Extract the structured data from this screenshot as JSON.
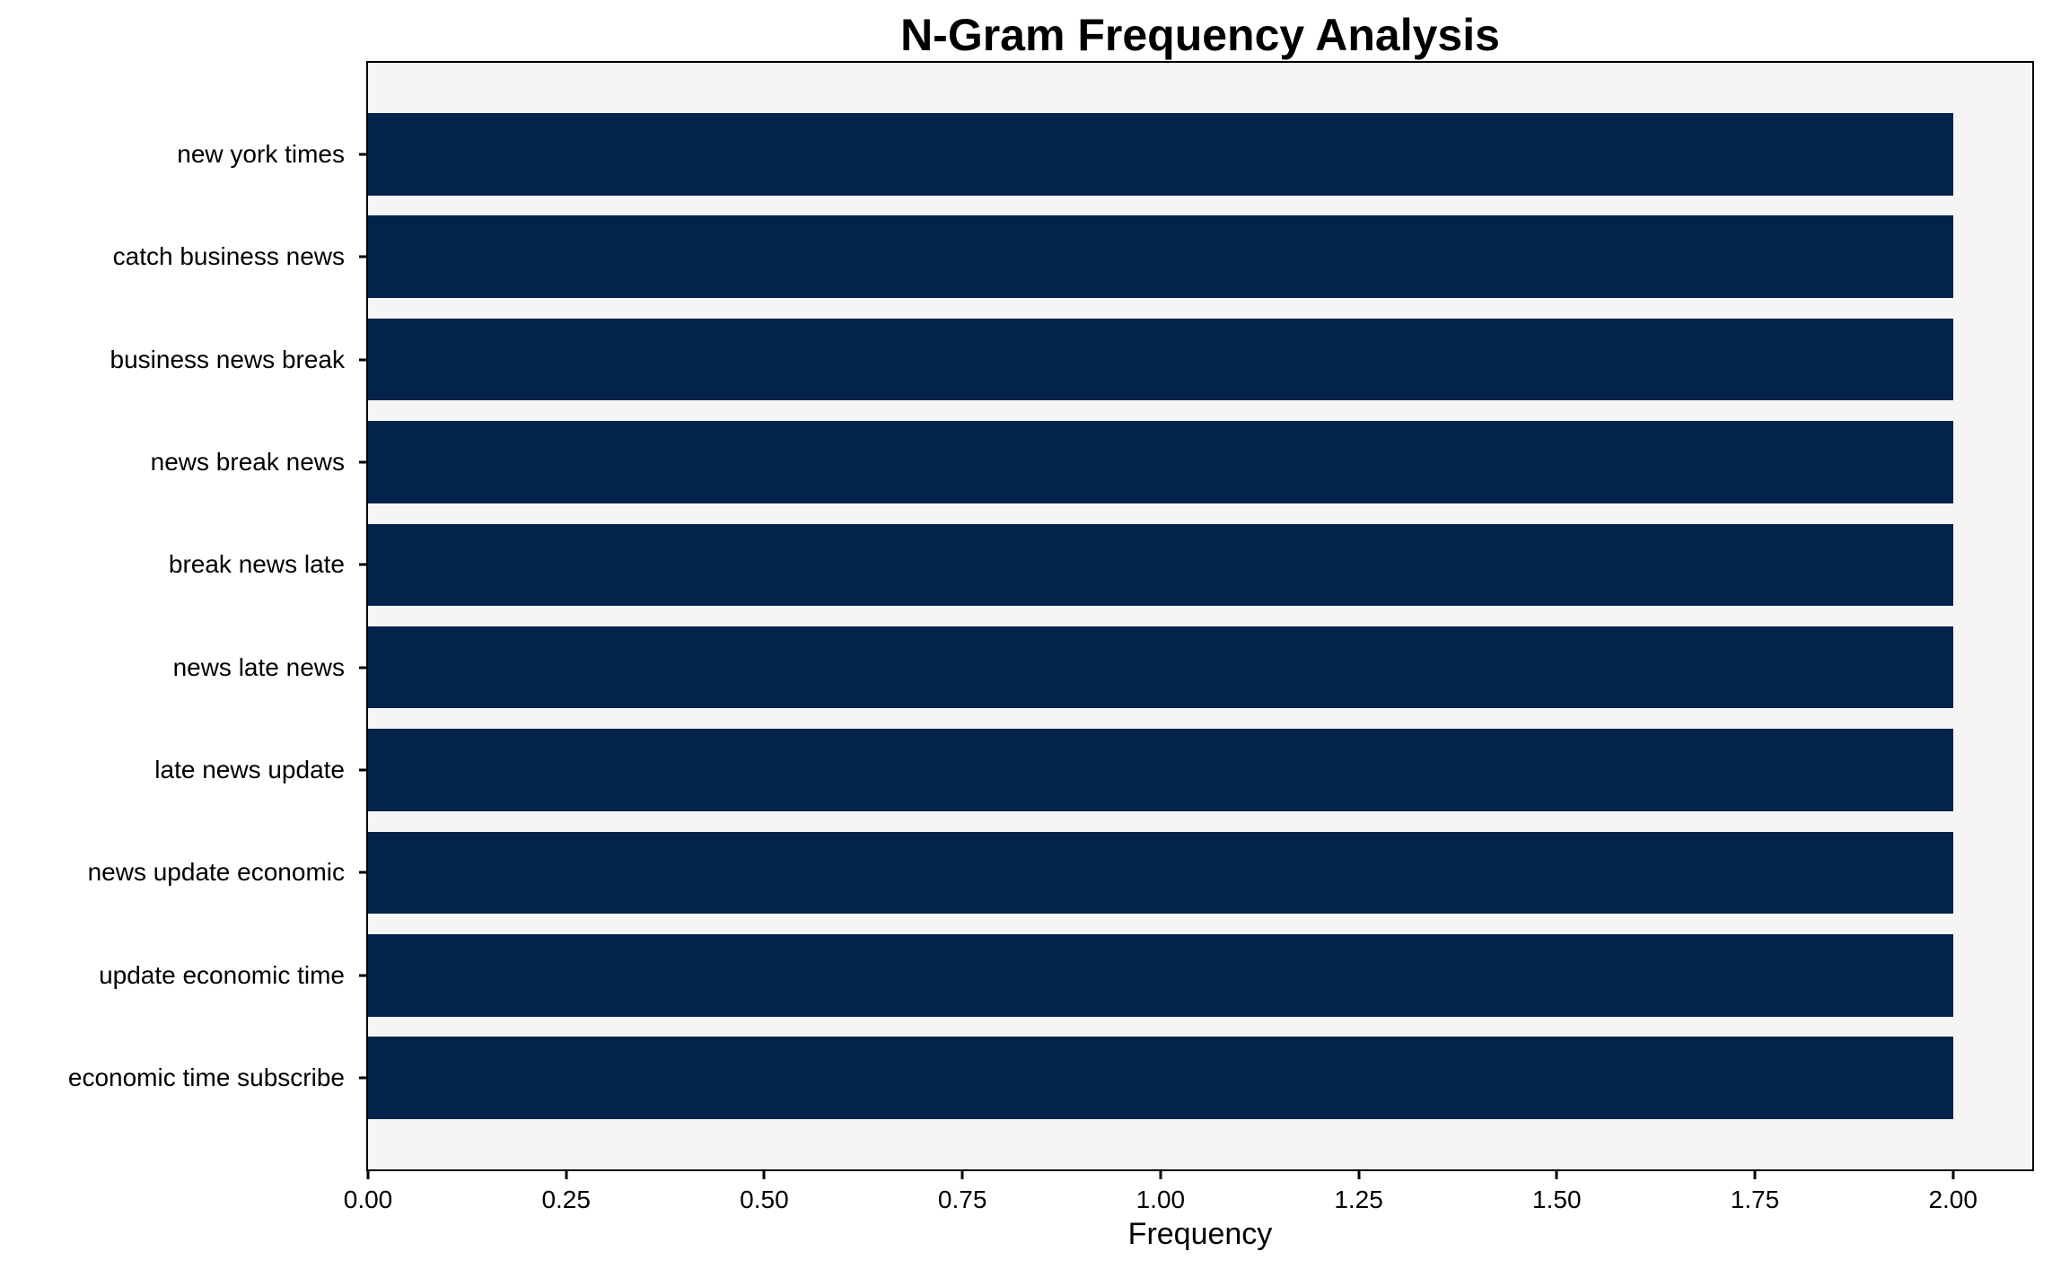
{
  "chart_data": {
    "type": "bar",
    "orientation": "horizontal",
    "title": "N-Gram Frequency Analysis",
    "xlabel": "Frequency",
    "ylabel": "",
    "categories": [
      "new york times",
      "catch business news",
      "business news break",
      "news break news",
      "break news late",
      "news late news",
      "late news update",
      "news update economic",
      "update economic time",
      "economic time subscribe"
    ],
    "values": [
      2,
      2,
      2,
      2,
      2,
      2,
      2,
      2,
      2,
      2
    ],
    "xlim": [
      0,
      2.1
    ],
    "xticks": {
      "values": [
        0,
        0.25,
        0.5,
        0.75,
        1.0,
        1.25,
        1.5,
        1.75,
        2.0
      ],
      "labels": [
        "0.00",
        "0.25",
        "0.50",
        "0.75",
        "1.00",
        "1.25",
        "1.50",
        "1.75",
        "2.00"
      ]
    },
    "bar_color": "#03224C",
    "plot_background": "#F5F5F6",
    "figure_background": "#FFFFFF",
    "grid": false,
    "legend": null,
    "bar_height_fraction": 0.8,
    "y_margin_fraction": 0.49
  }
}
